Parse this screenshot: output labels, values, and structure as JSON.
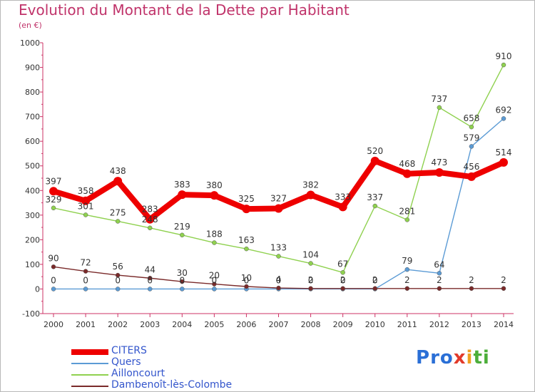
{
  "title": "Evolution du Montant de la Dette par Habitant",
  "unit": "(en €)",
  "logo": {
    "letters": [
      "P",
      "r",
      "o",
      "x",
      "i",
      "t",
      "i"
    ],
    "colors": [
      "#2a6fd6",
      "#2a6fd6",
      "#2a6fd6",
      "#e23a2a",
      "#f0a020",
      "#4cae3a",
      "#4cae3a"
    ]
  },
  "chart_data": {
    "type": "line",
    "x": [
      2000,
      2001,
      2002,
      2003,
      2004,
      2005,
      2006,
      2007,
      2008,
      2009,
      2010,
      2011,
      2012,
      2013,
      2014
    ],
    "ylim": [
      -100,
      1000
    ],
    "yticks": [
      -100,
      0,
      100,
      200,
      300,
      400,
      500,
      600,
      700,
      800,
      900,
      1000
    ],
    "grid": false,
    "legend_position": "bottom-left",
    "series": [
      {
        "name": "CITERS",
        "color": "#ee0000",
        "values": [
          397,
          358,
          438,
          283,
          383,
          380,
          325,
          327,
          382,
          333,
          520,
          468,
          473,
          456,
          514
        ]
      },
      {
        "name": "Quers",
        "color": "#5b9bd5",
        "values": [
          0,
          0,
          0,
          0,
          0,
          0,
          0,
          0,
          0,
          0,
          0,
          79,
          64,
          579,
          692
        ]
      },
      {
        "name": "Ailloncourt",
        "color": "#8fd14f",
        "values": [
          329,
          301,
          275,
          248,
          219,
          188,
          163,
          133,
          104,
          67,
          337,
          281,
          737,
          658,
          910
        ]
      },
      {
        "name": "Dambenoît-lès-Colombe",
        "color": "#7a2a2a",
        "values": [
          90,
          72,
          56,
          44,
          30,
          20,
          10,
          4,
          2,
          2,
          2,
          2,
          2,
          2,
          2
        ]
      }
    ]
  }
}
